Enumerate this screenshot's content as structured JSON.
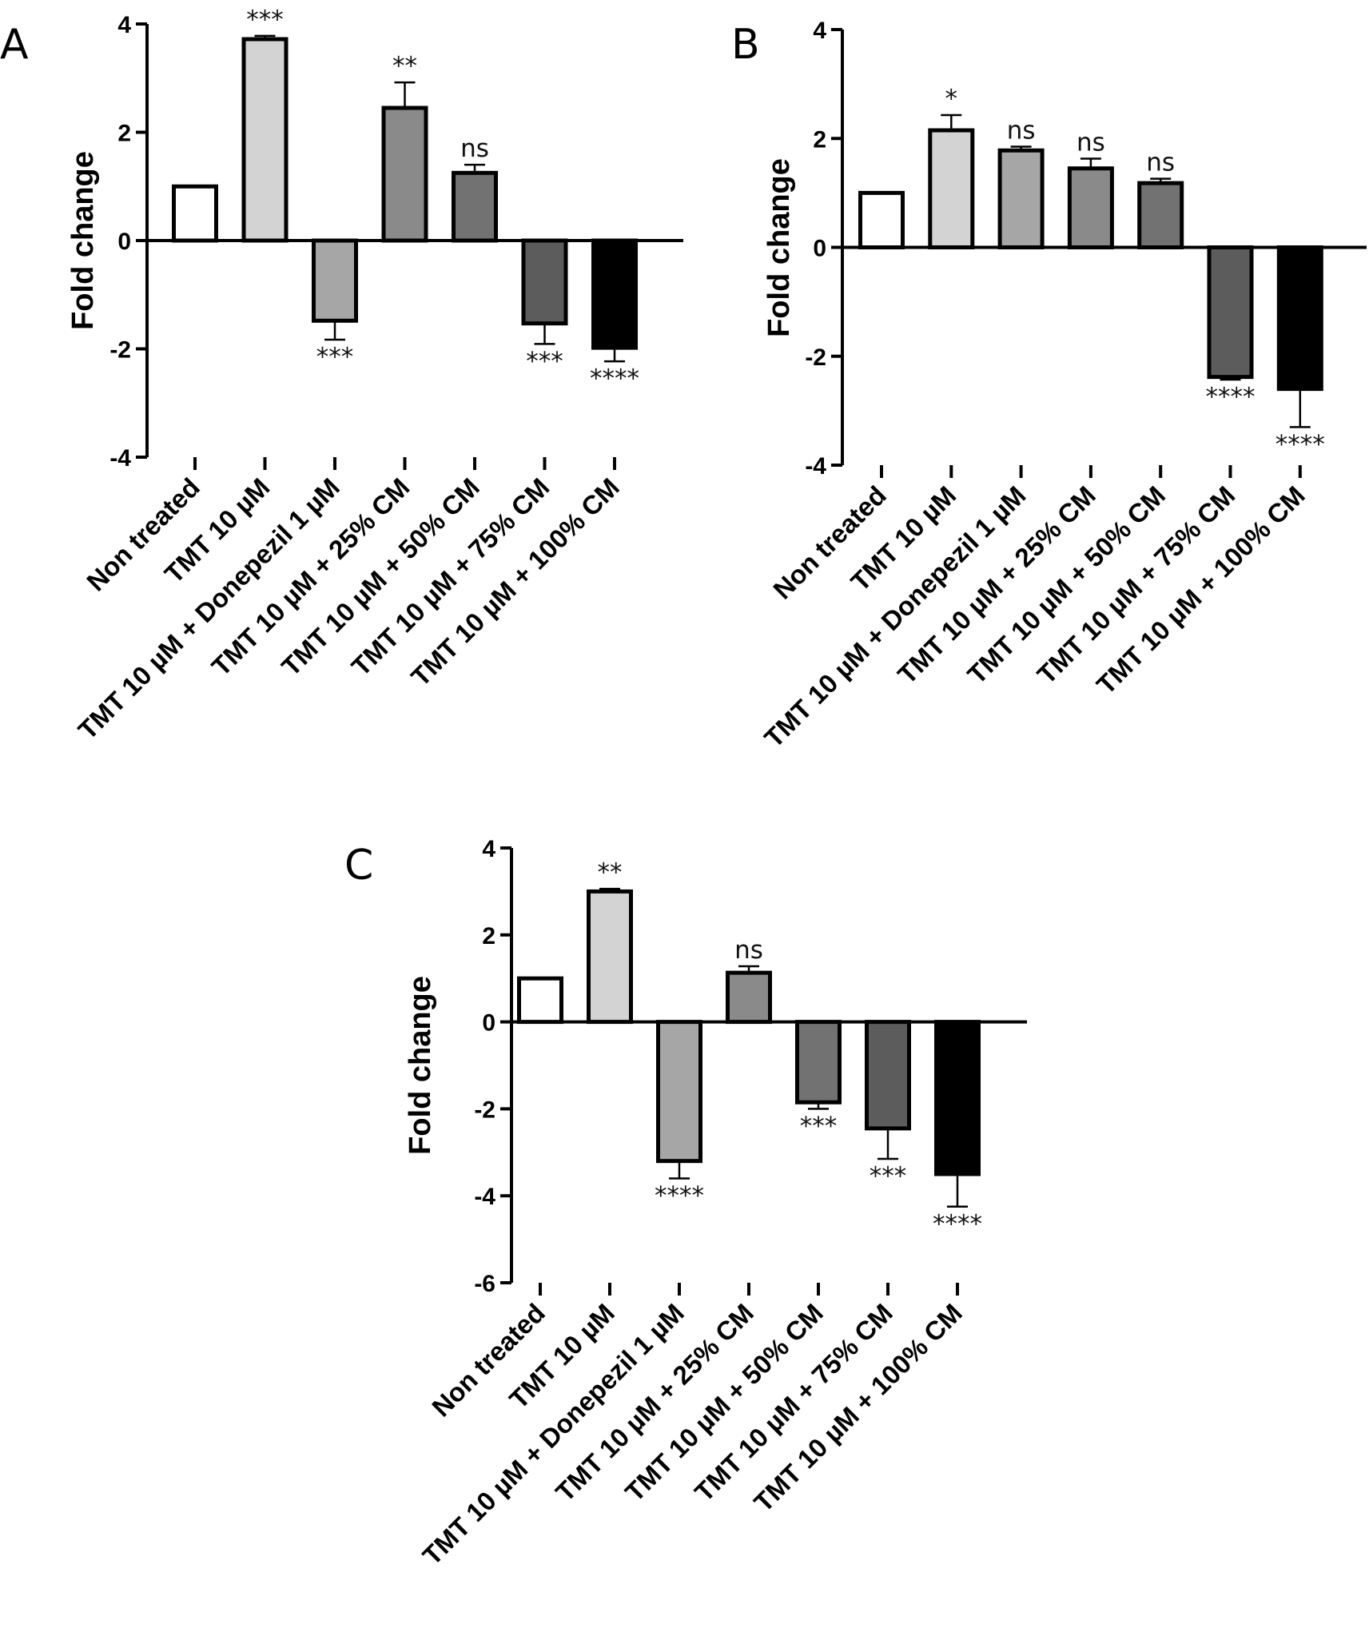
{
  "figure": {
    "colors": {
      "Non treated": "#ffffff",
      "TMT 10 µM": "#d3d3d3",
      "TMT 10 µM + Donepezil 1 µM": "#a6a6a6",
      "TMT 10 µM + 25% CM": "#8a8a8a",
      "TMT 10 µM + 50% CM": "#727272",
      "TMT 10 µM + 75% CM": "#5c5c5c",
      "TMT 10 µM + 100% CM": "#000000"
    }
  },
  "chart_data": [
    {
      "panel": "A",
      "type": "bar",
      "ylabel": "Fold change",
      "ylim": [
        -4,
        4
      ],
      "yticks": [
        "4",
        "2",
        "0",
        "-2",
        "-4"
      ],
      "categories": [
        "Non treated",
        "TMT 10 µM",
        "TMT 10 µM + Donepezil 1 µM",
        "TMT 10 µM + 25% CM",
        "TMT 10 µM + 50% CM",
        "TMT 10 µM + 75% CM",
        "TMT 10 µM + 100% CM"
      ],
      "values": [
        1.0,
        3.72,
        -1.48,
        2.45,
        1.25,
        -1.53,
        -1.98
      ],
      "errors": [
        0.0,
        0.06,
        0.35,
        0.47,
        0.15,
        0.38,
        0.25
      ],
      "significance": [
        "",
        "***",
        "***",
        "**",
        "ns",
        "***",
        "****"
      ]
    },
    {
      "panel": "B",
      "type": "bar",
      "ylabel": "Fold change",
      "ylim": [
        -4,
        4
      ],
      "yticks": [
        "4",
        "2",
        "0",
        "-2",
        "-4"
      ],
      "categories": [
        "Non treated",
        "TMT 10 µM",
        "TMT 10 µM + Donepezil 1 µM",
        "TMT 10 µM + 25% CM",
        "TMT 10 µM + 50% CM",
        "TMT 10 µM + 75% CM",
        "TMT 10 µM + 100% CM"
      ],
      "values": [
        1.0,
        2.15,
        1.78,
        1.45,
        1.18,
        -2.38,
        -2.6
      ],
      "errors": [
        0.0,
        0.28,
        0.07,
        0.18,
        0.08,
        0.05,
        0.7
      ],
      "significance": [
        "",
        "*",
        "ns",
        "ns",
        "ns",
        "****",
        "****"
      ]
    },
    {
      "panel": "C",
      "type": "bar",
      "ylabel": "Fold change",
      "ylim": [
        -6,
        4
      ],
      "yticks": [
        "4",
        "2",
        "0",
        "-2",
        "-4",
        "-6"
      ],
      "categories": [
        "Non treated",
        "TMT 10 µM",
        "TMT 10 µM + Donepezil 1 µM",
        "TMT 10 µM + 25% CM",
        "TMT 10 µM + 50% CM",
        "TMT 10 µM + 75% CM",
        "TMT 10 µM + 100% CM"
      ],
      "values": [
        1.0,
        3.0,
        -3.2,
        1.13,
        -1.85,
        -2.45,
        -3.5
      ],
      "errors": [
        0.0,
        0.06,
        0.4,
        0.15,
        0.15,
        0.7,
        0.75
      ],
      "significance": [
        "",
        "**",
        "****",
        "ns",
        "***",
        "***",
        "****"
      ]
    }
  ]
}
